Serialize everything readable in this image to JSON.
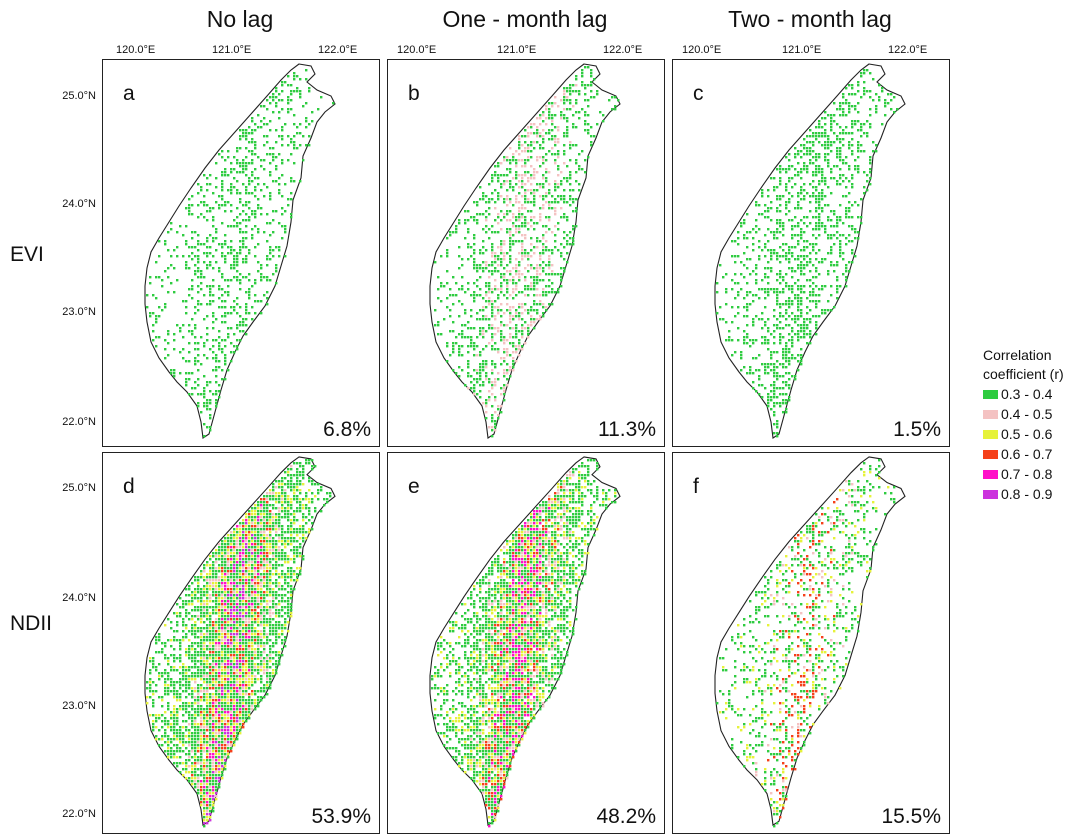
{
  "columns": [
    {
      "title": "No lag",
      "lon_labels": [
        "120.0°E",
        "121.0°E",
        "122.0°E"
      ]
    },
    {
      "title": "One - month lag",
      "lon_labels": [
        "120.0°E",
        "121.0°E",
        "122.0°E"
      ]
    },
    {
      "title": "Two - month lag",
      "lon_labels": [
        "120.0°E",
        "121.0°E",
        "122.0°E"
      ]
    }
  ],
  "rows": [
    {
      "label": "EVI",
      "lat_labels": [
        "25.0°N",
        "24.0°N",
        "23.0°N",
        "22.0°N"
      ]
    },
    {
      "label": "NDII",
      "lat_labels": [
        "25.0°N",
        "24.0°N",
        "23.0°N",
        "22.0°N"
      ]
    }
  ],
  "panels": [
    {
      "letter": "a",
      "percent": "6.8%",
      "density": 0.25,
      "highclass": 0
    },
    {
      "letter": "b",
      "percent": "11.3%",
      "density": 0.38,
      "highclass": 1
    },
    {
      "letter": "c",
      "percent": "1.5%",
      "density": 0.35,
      "highclass": 0
    },
    {
      "letter": "d",
      "percent": "53.9%",
      "density": 0.85,
      "highclass": 5
    },
    {
      "letter": "e",
      "percent": "48.2%",
      "density": 0.78,
      "highclass": 4
    },
    {
      "letter": "f",
      "percent": "15.5%",
      "density": 0.3,
      "highclass": 3
    }
  ],
  "legend": {
    "title_line1": "Correlation",
    "title_line2": "coefficient (r)",
    "items": [
      {
        "label": "0.3 - 0.4",
        "color": "#2ecc40"
      },
      {
        "label": "0.4 - 0.5",
        "color": "#f4c2c2"
      },
      {
        "label": "0.5 - 0.6",
        "color": "#e6f23a"
      },
      {
        "label": "0.6 - 0.7",
        "color": "#f5401a"
      },
      {
        "label": "0.7 - 0.8",
        "color": "#ff10c8"
      },
      {
        "label": "0.8 - 0.9",
        "color": "#cc33dd"
      }
    ]
  }
}
